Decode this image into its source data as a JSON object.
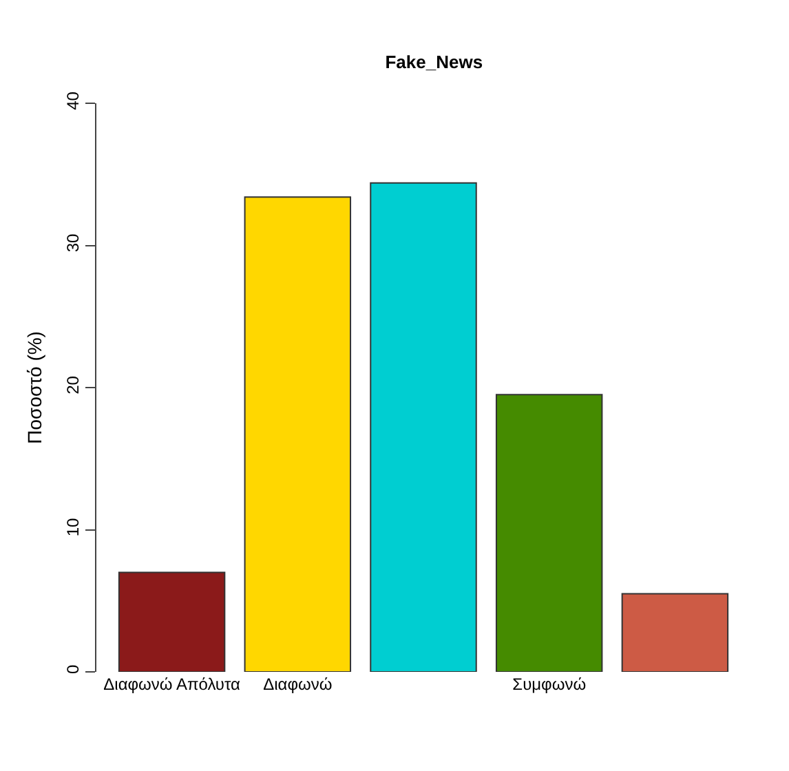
{
  "chart_data": {
    "type": "bar",
    "title": "Fake_News",
    "ylabel": "Ποσοστό (%)",
    "categories": [
      "Διαφωνώ Απόλυτα",
      "Διαφωνώ",
      null,
      "Συμφωνώ",
      null
    ],
    "values": [
      7.0,
      33.4,
      34.4,
      19.5,
      5.5
    ],
    "colors": [
      "#8b1a1a",
      "#ffd700",
      "#00ced1",
      "#458b00",
      "#cd5b45"
    ],
    "ylim": [
      0,
      40
    ],
    "yticks": [
      0,
      10,
      20,
      30,
      40
    ]
  }
}
